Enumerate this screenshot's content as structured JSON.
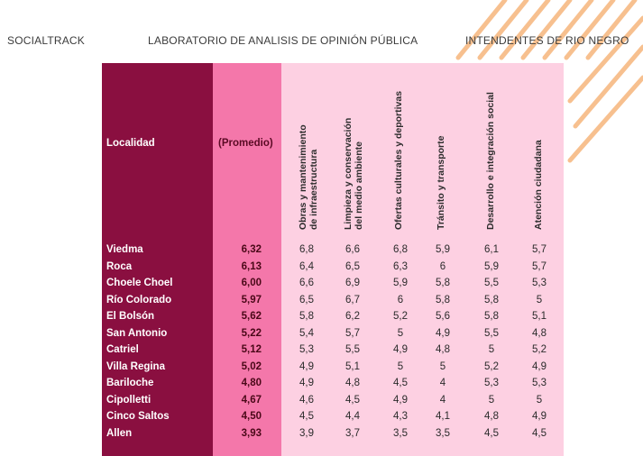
{
  "header": {
    "brand": "SOCIALTRACK",
    "title": "LABORATORIO DE ANALISIS DE OPINIÓN PÚBLICA",
    "subtitle": "INTENDENTES DE RIO NEGRO"
  },
  "table": {
    "col_locality": "Localidad",
    "col_average": "(Promedio)",
    "categories": [
      [
        "Obras y mantenimiento",
        "de infraestructura"
      ],
      [
        "Limpieza y conservación",
        "del medio ambiente"
      ],
      [
        "Ofertas culturales y deportivas"
      ],
      [
        "Tránsito y transporte"
      ],
      [
        "Desarrollo e integración social"
      ],
      [
        "Atención ciudadana"
      ]
    ],
    "rows": [
      {
        "localidad": "Viedma",
        "promedio": "6,32",
        "v": [
          "6,8",
          "6,6",
          "6,8",
          "5,9",
          "6,1",
          "5,7"
        ]
      },
      {
        "localidad": "Roca",
        "promedio": "6,13",
        "v": [
          "6,4",
          "6,5",
          "6,3",
          "6",
          "5,9",
          "5,7"
        ]
      },
      {
        "localidad": "Choele Choel",
        "promedio": "6,00",
        "v": [
          "6,6",
          "6,9",
          "5,9",
          "5,8",
          "5,5",
          "5,3"
        ]
      },
      {
        "localidad": "Río Colorado",
        "promedio": "5,97",
        "v": [
          "6,5",
          "6,7",
          "6",
          "5,8",
          "5,8",
          "5"
        ]
      },
      {
        "localidad": "El Bolsón",
        "promedio": "5,62",
        "v": [
          "5,8",
          "6,2",
          "5,2",
          "5,6",
          "5,8",
          "5,1"
        ]
      },
      {
        "localidad": "San Antonio",
        "promedio": "5,22",
        "v": [
          "5,4",
          "5,7",
          "5",
          "4,9",
          "5,5",
          "4,8"
        ]
      },
      {
        "localidad": "Catriel",
        "promedio": "5,12",
        "v": [
          "5,3",
          "5,5",
          "4,9",
          "4,8",
          "5",
          "5,2"
        ]
      },
      {
        "localidad": "Villa Regina",
        "promedio": "5,02",
        "v": [
          "4,9",
          "5,1",
          "5",
          "5",
          "5,2",
          "4,9"
        ]
      },
      {
        "localidad": "Bariloche",
        "promedio": "4,80",
        "v": [
          "4,9",
          "4,8",
          "4,5",
          "4",
          "5,3",
          "5,3"
        ]
      },
      {
        "localidad": "Cipolletti",
        "promedio": "4,67",
        "v": [
          "4,6",
          "4,5",
          "4,9",
          "4",
          "5",
          "5"
        ]
      },
      {
        "localidad": "Cinco Saltos",
        "promedio": "4,50",
        "v": [
          "4,5",
          "4,4",
          "4,3",
          "4,1",
          "4,8",
          "4,9"
        ]
      },
      {
        "localidad": "Allen",
        "promedio": "3,93",
        "v": [
          "3,9",
          "3,7",
          "3,5",
          "3,5",
          "4,5",
          "4,5"
        ]
      }
    ]
  }
}
